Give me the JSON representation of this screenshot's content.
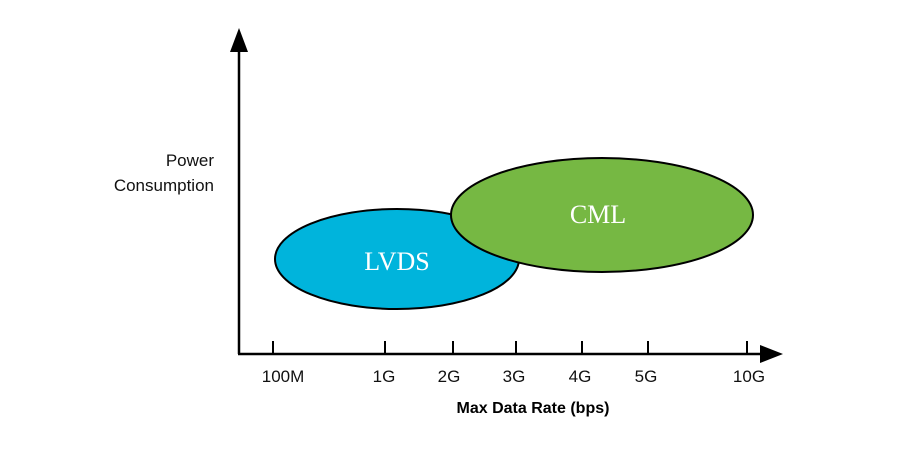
{
  "y_axis_label": [
    "Power",
    "Consumption"
  ],
  "x_axis_label": "Max Data Rate (bps)",
  "x_ticks": [
    "100M",
    "1G",
    "2G",
    "3G",
    "4G",
    "5G",
    "10G"
  ],
  "regions": [
    {
      "name": "LVDS",
      "color": "#00b4dc"
    },
    {
      "name": "CML",
      "color": "#76b843"
    }
  ]
}
